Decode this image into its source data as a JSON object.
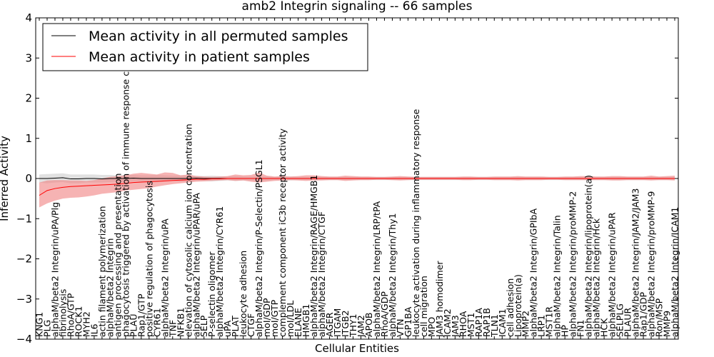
{
  "chart_data": {
    "type": "line",
    "title": "amb2 Integrin signaling -- 66 samples",
    "xlabel": "Cellular Entities",
    "ylabel": "Inferred Activity",
    "ylim": [
      -4,
      4
    ],
    "yticks": [
      "−4",
      "−3",
      "−2",
      "−1",
      "0",
      "1",
      "2",
      "3",
      "4"
    ],
    "grid": false,
    "legend_position": "top-left",
    "colors": {
      "permuted": "#000000",
      "patient": "#ff0000",
      "permuted_band": "#c8c8c8",
      "patient_band": "#f08080"
    },
    "categories": [
      "KNG1",
      "PLG",
      "alphaM/beta2 Integrin/uPA/Plg",
      "fibrinolysis",
      "RhoA/GTP",
      "ROCK1",
      "MYH2",
      "IL6",
      "actin filament polymerization",
      "alphaM/beta2 Integrin",
      "antigen processing and presentation",
      "phagocytosis triggered by activation of immune response cell surface",
      "PLAU",
      "Rap1/GTP",
      "positive regulation of phagocytosis",
      "CYR61",
      "alphaM/beta2 Integrin/uPA",
      "TNF",
      "NFKB1",
      "elevation of cytosolic calcium ion concentration",
      "alphaM/beta2 Integrin/uPAR/uPA",
      "SELP",
      "P-selectin oligomer",
      "alphaM/beta2 Integrin/CYR61",
      "uPA",
      "PLAT",
      "leukocyte adhesion",
      "CTGF",
      "alphaM/beta2 Integrin/P-Selectin/PSGL1",
      "moI/GDP",
      "moI/GTP",
      "complement component iC3b receptor activity",
      "moI/LDL",
      "ELANE",
      "HMGB1",
      "alphaM/beta2 Integrin/RAGE/HMGB1",
      "alphaM/beta2 Integrin/CTGF",
      "AGER",
      "ITGAM",
      "ITGB2",
      "THY1",
      "JAM2",
      "APOB",
      "alphaM/beta2 Integrin/LRP/tPA",
      "RhoA/GDP",
      "alphaM/beta2 Integrin/Thy1",
      "VTN",
      "GP1BA",
      "leukocyte activation during inflammatory response",
      "cell migration",
      "MPO",
      "JAM3 homodimer",
      "ICAM2",
      "JAM3",
      "RHOA",
      "MST1",
      "RAP1A",
      "RAP1B",
      "TLN1",
      "ICAM1",
      "cell adhesion",
      "Lipoprotein(a)",
      "MMP2",
      "alphaM/beta2 Integrin/GPIbA",
      "LRP1",
      "MST1R",
      "alphaM/beta2 Integrin/Talin",
      "HP",
      "alphaM/beta2 Integrin/proMMP-2",
      "FN1",
      "alphaM/beta2 Integrin/lipoprotein(a)",
      "alphaM/beta2 Integrin/Hck",
      "HCK",
      "alphaM/beta2 Integrin/uPAR",
      "SELPLG",
      "PLAUR",
      "alphaM/beta2 Integrin/JAM2/JAM3",
      "Rap1/GDP",
      "alphaM/beta2 Integrin/proMMP-9",
      "Ron/MSP",
      "MMP9",
      "alphaM/beta2 Integrin/ICAM1"
    ],
    "series": [
      {
        "name": "Mean activity in all permuted samples",
        "values": [
          0.0,
          0.0,
          0.01,
          0.02,
          -0.01,
          -0.01,
          0.0,
          0.0,
          -0.01,
          0.0,
          0.0,
          0.0,
          0.01,
          0.0,
          0.0,
          0.0,
          0.0,
          0.0,
          0.0,
          0.0,
          0.01,
          0.0,
          0.0,
          0.0,
          0.0,
          0.0,
          0.0,
          0.0,
          0.0,
          0.0,
          0.0,
          0.0,
          0.0,
          0.0,
          0.0,
          0.0,
          0.0,
          0.0,
          0.0,
          0.0,
          0.0,
          0.0,
          0.0,
          0.0,
          0.0,
          0.0,
          0.0,
          0.0,
          0.0,
          0.0,
          0.0,
          0.0,
          0.0,
          0.0,
          0.0,
          0.0,
          0.0,
          0.0,
          0.0,
          0.0,
          0.0,
          0.0,
          0.0,
          0.0,
          0.0,
          0.0,
          0.0,
          0.0,
          0.0,
          0.0,
          0.0,
          0.0,
          0.0,
          0.0,
          0.0,
          0.0,
          0.0,
          0.0,
          0.0,
          0.0,
          0.0,
          0.0
        ],
        "lower": [
          -0.1,
          -0.12,
          -0.1,
          -0.09,
          -0.12,
          -0.12,
          -0.1,
          -0.1,
          -0.1,
          -0.09,
          -0.08,
          -0.1,
          -0.07,
          -0.08,
          -0.08,
          -0.09,
          -0.07,
          -0.06,
          -0.08,
          -0.07,
          -0.05,
          -0.06,
          -0.07,
          -0.06,
          -0.05,
          -0.06,
          -0.05,
          -0.05,
          -0.05,
          -0.05,
          -0.04,
          -0.05,
          -0.05,
          -0.04,
          -0.04,
          -0.04,
          -0.04,
          -0.04,
          -0.04,
          -0.04,
          -0.04,
          -0.04,
          -0.04,
          -0.04,
          -0.04,
          -0.04,
          -0.04,
          -0.04,
          -0.04,
          -0.04,
          -0.04,
          -0.04,
          -0.04,
          -0.04,
          -0.04,
          -0.04,
          -0.04,
          -0.04,
          -0.04,
          -0.04,
          -0.04,
          -0.04,
          -0.04,
          -0.04,
          -0.04,
          -0.04,
          -0.04,
          -0.04,
          -0.04,
          -0.04,
          -0.04,
          -0.04,
          -0.04,
          -0.04,
          -0.04,
          -0.04,
          -0.04,
          -0.04,
          -0.04,
          -0.04,
          -0.04,
          -0.04
        ],
        "upper": [
          0.1,
          0.11,
          0.12,
          0.13,
          0.1,
          0.1,
          0.1,
          0.1,
          0.09,
          0.09,
          0.08,
          0.09,
          0.09,
          0.08,
          0.08,
          0.09,
          0.08,
          0.07,
          0.08,
          0.07,
          0.07,
          0.06,
          0.07,
          0.06,
          0.05,
          0.06,
          0.05,
          0.05,
          0.05,
          0.05,
          0.04,
          0.05,
          0.05,
          0.04,
          0.04,
          0.04,
          0.04,
          0.04,
          0.04,
          0.04,
          0.04,
          0.04,
          0.04,
          0.04,
          0.04,
          0.04,
          0.04,
          0.04,
          0.04,
          0.04,
          0.04,
          0.04,
          0.04,
          0.04,
          0.04,
          0.04,
          0.04,
          0.04,
          0.04,
          0.04,
          0.04,
          0.04,
          0.04,
          0.04,
          0.04,
          0.04,
          0.04,
          0.04,
          0.04,
          0.04,
          0.04,
          0.04,
          0.04,
          0.04,
          0.04,
          0.04,
          0.04,
          0.04,
          0.04,
          0.04,
          0.04,
          0.04
        ]
      },
      {
        "name": "Mean activity in patient samples",
        "values": [
          -0.42,
          -0.3,
          -0.25,
          -0.22,
          -0.2,
          -0.19,
          -0.18,
          -0.17,
          -0.16,
          -0.15,
          -0.14,
          -0.12,
          -0.1,
          -0.09,
          -0.08,
          -0.07,
          -0.06,
          -0.05,
          -0.04,
          -0.03,
          -0.02,
          -0.02,
          -0.01,
          -0.01,
          0.0,
          0.0,
          0.0,
          0.0,
          0.0,
          0.0,
          0.0,
          0.0,
          0.0,
          0.0,
          0.0,
          0.0,
          0.0,
          0.0,
          0.0,
          0.0,
          0.0,
          0.0,
          0.0,
          0.0,
          0.0,
          0.0,
          0.0,
          0.0,
          0.0,
          0.0,
          0.0,
          0.0,
          0.0,
          0.0,
          0.0,
          0.0,
          0.0,
          0.0,
          0.0,
          0.0,
          0.0,
          0.0,
          0.0,
          0.0,
          0.0,
          0.0,
          0.0,
          0.0,
          0.0,
          0.0,
          0.0,
          0.0,
          0.0,
          0.0,
          0.0,
          0.0,
          0.0,
          0.0,
          0.0,
          0.0,
          0.0,
          0.0
        ],
        "lower": [
          -0.72,
          -0.62,
          -0.55,
          -0.5,
          -0.48,
          -0.47,
          -0.45,
          -0.42,
          -0.38,
          -0.36,
          -0.34,
          -0.3,
          -0.28,
          -0.26,
          -0.24,
          -0.2,
          -0.17,
          -0.14,
          -0.12,
          -0.1,
          -0.08,
          -0.07,
          -0.06,
          -0.05,
          -0.04,
          -0.06,
          -0.05,
          -0.08,
          -0.1,
          -0.08,
          -0.06,
          -0.05,
          -0.04,
          -0.05,
          -0.06,
          -0.05,
          -0.05,
          -0.04,
          -0.04,
          -0.06,
          -0.05,
          -0.04,
          -0.04,
          -0.03,
          -0.03,
          -0.04,
          -0.05,
          -0.04,
          -0.03,
          -0.03,
          -0.03,
          -0.03,
          -0.03,
          -0.03,
          -0.04,
          -0.04,
          -0.03,
          -0.03,
          -0.04,
          -0.04,
          -0.04,
          -0.05,
          -0.04,
          -0.04,
          -0.04,
          -0.03,
          -0.03,
          -0.04,
          -0.04,
          -0.04,
          -0.04,
          -0.04,
          -0.04,
          -0.05,
          -0.05,
          -0.04,
          -0.04,
          -0.04,
          -0.05,
          -0.04,
          -0.04,
          -0.05
        ],
        "upper": [
          -0.1,
          -0.05,
          -0.04,
          -0.04,
          -0.05,
          -0.05,
          -0.06,
          -0.04,
          0.0,
          0.04,
          0.06,
          0.08,
          0.12,
          0.14,
          0.12,
          0.1,
          0.15,
          0.14,
          0.08,
          0.1,
          0.06,
          0.05,
          0.04,
          0.05,
          0.06,
          0.1,
          0.08,
          0.09,
          0.15,
          0.07,
          0.05,
          0.06,
          0.05,
          0.06,
          0.08,
          0.08,
          0.06,
          0.05,
          0.05,
          0.07,
          0.06,
          0.05,
          0.05,
          0.04,
          0.04,
          0.05,
          0.06,
          0.05,
          0.04,
          0.04,
          0.04,
          0.04,
          0.04,
          0.04,
          0.05,
          0.05,
          0.04,
          0.04,
          0.05,
          0.05,
          0.05,
          0.06,
          0.05,
          0.05,
          0.05,
          0.04,
          0.04,
          0.05,
          0.05,
          0.06,
          0.06,
          0.05,
          0.05,
          0.06,
          0.06,
          0.05,
          0.05,
          0.05,
          0.07,
          0.05,
          0.06,
          0.07
        ]
      }
    ]
  }
}
